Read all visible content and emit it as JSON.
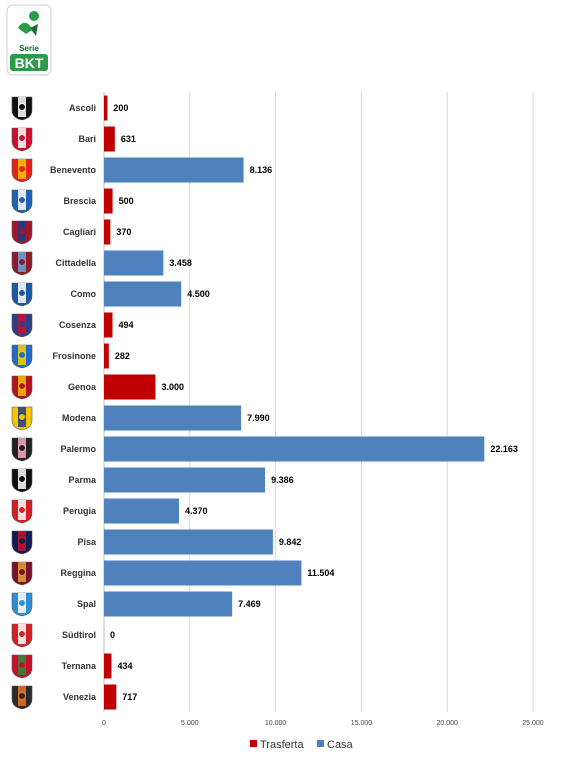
{
  "league": {
    "logo_lines": [
      "Serie",
      "BKT"
    ],
    "colors": {
      "green": "#2e9b4a",
      "dark_green": "#1e6b33",
      "red": "#d7262b"
    }
  },
  "colors": {
    "trasferta": "#c00000",
    "casa": "#4f81bd",
    "grid": "#d9d9d9",
    "axis": "#bfbfbf"
  },
  "chart_data": {
    "type": "bar",
    "orientation": "horizontal",
    "categories": [
      "Ascoli",
      "Bari",
      "Benevento",
      "Brescia",
      "Cagliari",
      "Cittadella",
      "Como",
      "Cosenza",
      "Frosinone",
      "Genoa",
      "Modena",
      "Palermo",
      "Parma",
      "Perugia",
      "Pisa",
      "Reggina",
      "Spal",
      "Südtirol",
      "Ternana",
      "Venezia"
    ],
    "values": [
      200,
      631,
      8136,
      500,
      370,
      3458,
      4500,
      494,
      282,
      3000,
      7990,
      22163,
      9386,
      4370,
      9842,
      11504,
      7469,
      0,
      434,
      717
    ],
    "value_labels": [
      "200",
      "631",
      "8.136",
      "500",
      "370",
      "3.458",
      "4.500",
      "494",
      "282",
      "3.000",
      "7.990",
      "22.163",
      "9.386",
      "4.370",
      "9.842",
      "11.504",
      "7.469",
      "0",
      "434",
      "717"
    ],
    "series_of_bar": [
      "Trasferta",
      "Trasferta",
      "Casa",
      "Trasferta",
      "Trasferta",
      "Casa",
      "Casa",
      "Trasferta",
      "Trasferta",
      "Trasferta",
      "Casa",
      "Casa",
      "Casa",
      "Casa",
      "Casa",
      "Casa",
      "Casa",
      "Trasferta",
      "Trasferta",
      "Trasferta"
    ],
    "series": [
      {
        "name": "Trasferta",
        "color": "#c00000"
      },
      {
        "name": "Casa",
        "color": "#4f81bd"
      }
    ],
    "xlim": [
      0,
      25000
    ],
    "x_ticks": [
      0,
      5000,
      10000,
      15000,
      20000,
      25000
    ],
    "x_tick_labels": [
      "0",
      "5.000",
      "10.000",
      "15.000",
      "20.000",
      "25.000"
    ],
    "grid": true,
    "legend_position": "bottom"
  },
  "team_badges": [
    {
      "name": "ascoli-badge",
      "primary": "#111111",
      "secondary": "#ffffff"
    },
    {
      "name": "bari-badge",
      "primary": "#c8102e",
      "secondary": "#ffffff"
    },
    {
      "name": "benevento-badge",
      "primary": "#e2231a",
      "secondary": "#f6c500"
    },
    {
      "name": "brescia-badge",
      "primary": "#1f5fb4",
      "secondary": "#ffffff"
    },
    {
      "name": "cagliari-badge",
      "primary": "#a3152a",
      "secondary": "#1d3c8f"
    },
    {
      "name": "cittadella-badge",
      "primary": "#8e1b2a",
      "secondary": "#6fa3d9"
    },
    {
      "name": "como-badge",
      "primary": "#1b5aa6",
      "secondary": "#ffffff"
    },
    {
      "name": "cosenza-badge",
      "primary": "#2b3f86",
      "secondary": "#c8102e"
    },
    {
      "name": "frosinone-badge",
      "primary": "#2269c8",
      "secondary": "#f6d100"
    },
    {
      "name": "genoa-badge",
      "primary": "#b5121b",
      "secondary": "#f2c300"
    },
    {
      "name": "modena-badge",
      "primary": "#f6c500",
      "secondary": "#1f3d8a"
    },
    {
      "name": "palermo-badge",
      "primary": "#222222",
      "secondary": "#f5a9c0"
    },
    {
      "name": "parma-badge",
      "primary": "#111111",
      "secondary": "#ffffff"
    },
    {
      "name": "perugia-badge",
      "primary": "#d31f26",
      "secondary": "#ffffff"
    },
    {
      "name": "pisa-badge",
      "primary": "#0d1e4f",
      "secondary": "#c8102e"
    },
    {
      "name": "reggina-badge",
      "primary": "#7a1126",
      "secondary": "#e2a23b"
    },
    {
      "name": "spal-badge",
      "primary": "#2e8fd6",
      "secondary": "#ffffff"
    },
    {
      "name": "sudtirol-badge",
      "primary": "#d31f26",
      "secondary": "#ffffff"
    },
    {
      "name": "ternana-badge",
      "primary": "#c8102e",
      "secondary": "#2e8b3a"
    },
    {
      "name": "venezia-badge",
      "primary": "#2b2b2b",
      "secondary": "#e87722"
    }
  ]
}
